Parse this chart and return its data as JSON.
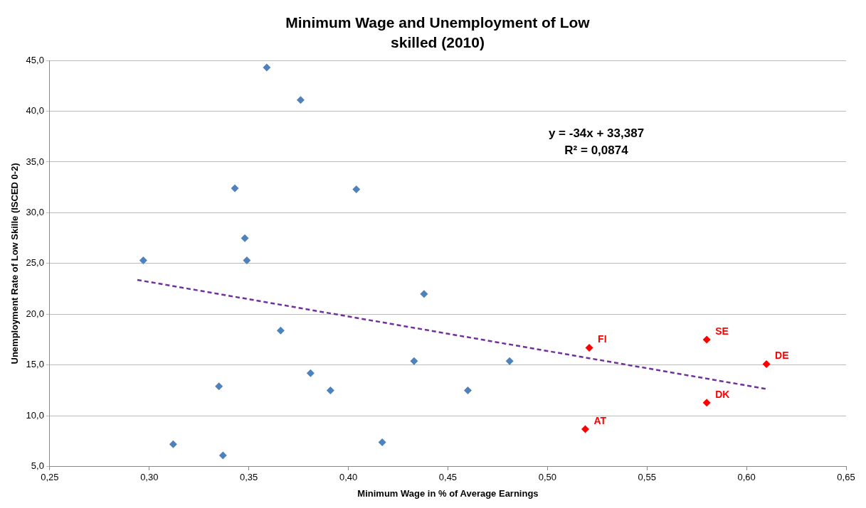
{
  "chart_data": {
    "type": "scatter",
    "title": "Minimum Wage and Unemployment of Low skilled (2010)",
    "xlabel": "Minimum Wage in % of Average Earnings",
    "ylabel": "Unemployment Rate of Low Skille (ISCED 0-2)",
    "xlim": [
      0.25,
      0.65
    ],
    "ylim": [
      5,
      45
    ],
    "xticks": [
      {
        "value": 0.25,
        "label": "0,25"
      },
      {
        "value": 0.3,
        "label": "0,30"
      },
      {
        "value": 0.35,
        "label": "0,35"
      },
      {
        "value": 0.4,
        "label": "0,40"
      },
      {
        "value": 0.45,
        "label": "0,45"
      },
      {
        "value": 0.5,
        "label": "0,50"
      },
      {
        "value": 0.55,
        "label": "0,55"
      },
      {
        "value": 0.6,
        "label": "0,60"
      },
      {
        "value": 0.65,
        "label": "0,65"
      }
    ],
    "yticks": [
      {
        "value": 5,
        "label": "5,0"
      },
      {
        "value": 10,
        "label": "10,0"
      },
      {
        "value": 15,
        "label": "15,0"
      },
      {
        "value": 20,
        "label": "20,0"
      },
      {
        "value": 25,
        "label": "25,0"
      },
      {
        "value": 30,
        "label": "30,0"
      },
      {
        "value": 35,
        "label": "35,0"
      },
      {
        "value": 40,
        "label": "40,0"
      },
      {
        "value": 45,
        "label": "45,0"
      }
    ],
    "grid": "y",
    "legend": false,
    "marker": "diamond",
    "series": [
      {
        "color": "#4f81bd",
        "x": [
          0.297,
          0.312,
          0.335,
          0.337,
          0.343,
          0.348,
          0.349,
          0.359,
          0.366,
          0.376,
          0.381,
          0.391,
          0.404,
          0.417,
          0.433,
          0.438,
          0.46,
          0.481
        ],
        "values": [
          25.3,
          7.2,
          12.9,
          6.1,
          32.4,
          27.5,
          25.3,
          44.3,
          18.4,
          41.1,
          14.2,
          12.5,
          32.3,
          7.4,
          15.4,
          22.0,
          12.5,
          15.4
        ]
      },
      {
        "color": "#ff0000",
        "x": [
          0.521,
          0.519,
          0.58,
          0.58,
          0.61
        ],
        "values": [
          16.7,
          8.7,
          17.5,
          11.3,
          15.1
        ]
      },
      {
        "type": "line",
        "color": "#7030a0",
        "marker": "none",
        "line_style": "dashed",
        "x": [
          0.294,
          0.61
        ],
        "values": [
          23.39,
          12.65
        ]
      }
    ],
    "annotations": [
      {
        "text": "FI",
        "x": 0.521,
        "y": 16.7
      },
      {
        "text": "AT",
        "x": 0.519,
        "y": 8.7
      },
      {
        "text": "SE",
        "x": 0.58,
        "y": 17.5
      },
      {
        "text": "DK",
        "x": 0.58,
        "y": 11.3
      },
      {
        "text": "DE",
        "x": 0.61,
        "y": 15.1
      },
      "y = -34x + 33,387",
      "R² = 0,0874"
    ]
  }
}
